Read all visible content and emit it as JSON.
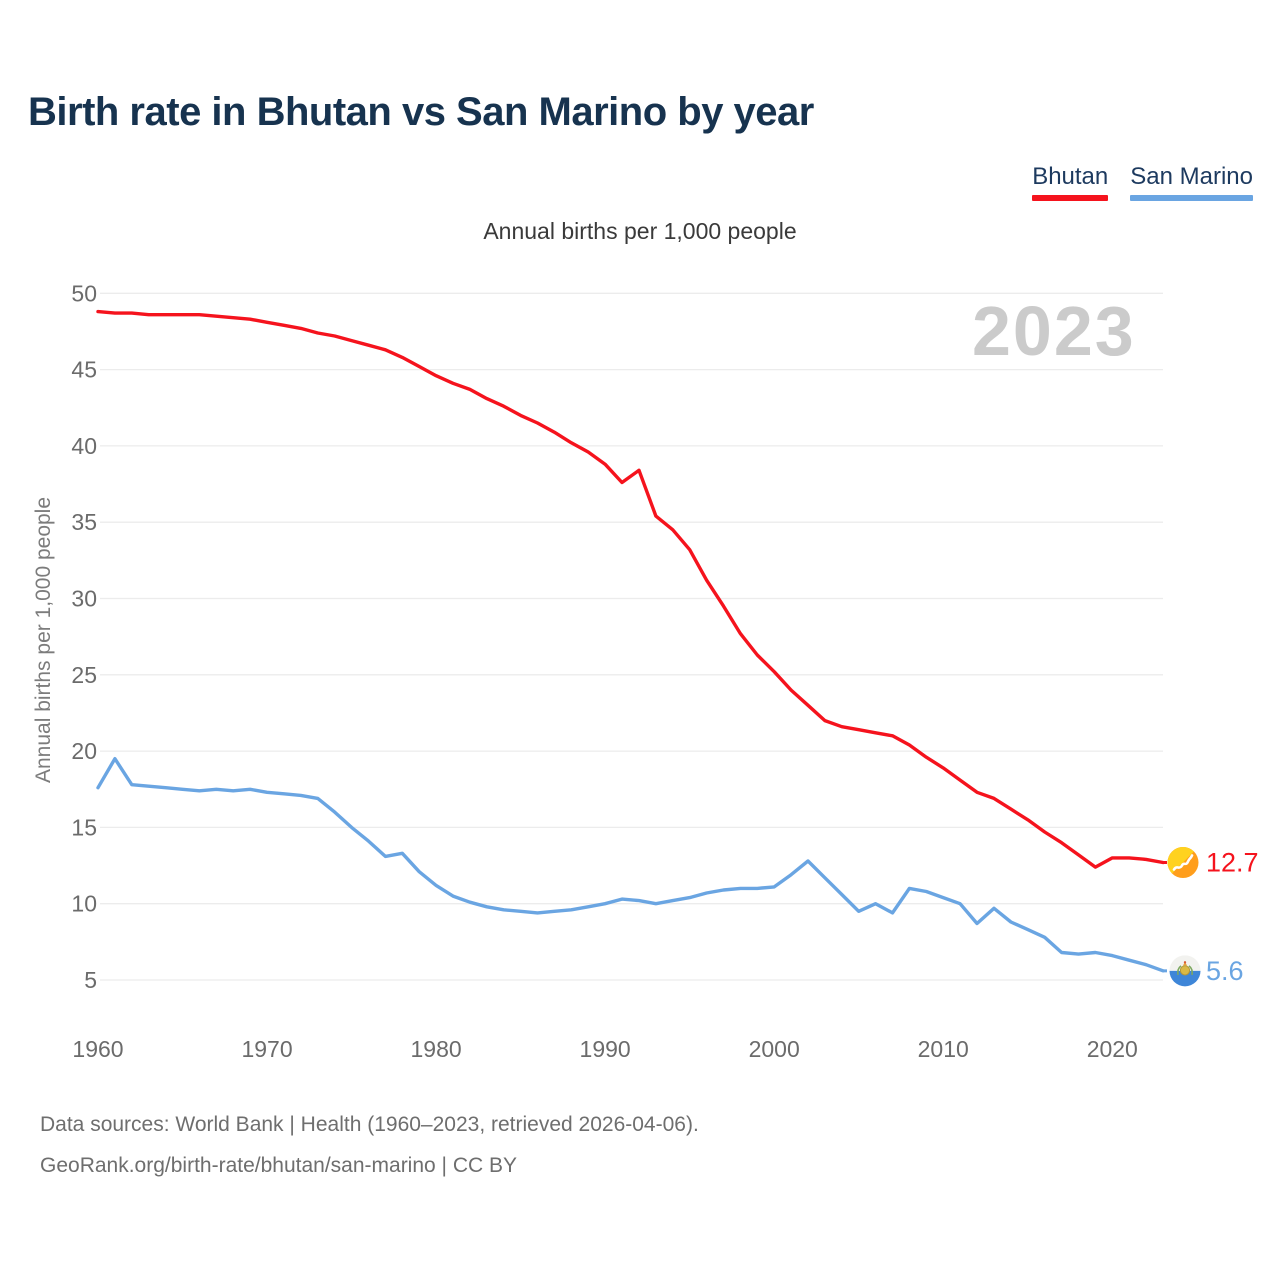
{
  "header": {
    "title": "Birth rate in Bhutan vs San Marino by year"
  },
  "legend": [
    {
      "label": "Bhutan",
      "color": "#f5131d"
    },
    {
      "label": "San Marino",
      "color": "#6aa5e2"
    }
  ],
  "watermark": "2023",
  "footer": {
    "line1": "Data sources: World Bank | Health (1960–2023, retrieved 2026-04-06).",
    "line2": "GeoRank.org/birth-rate/bhutan/san-marino | CC BY"
  },
  "chart_data": {
    "type": "line",
    "title": "Annual births per 1,000 people",
    "xlabel": "",
    "ylabel": "Annual births per 1,000 people",
    "ylim": [
      5,
      50
    ],
    "yticks": [
      5,
      10,
      15,
      20,
      25,
      30,
      35,
      40,
      45,
      50
    ],
    "xticks": [
      1960,
      1970,
      1980,
      1990,
      2000,
      2010,
      2020
    ],
    "grid": "horizontal",
    "legend_position": "top-right",
    "x_range": [
      1960,
      2023
    ],
    "x": [
      1960,
      1961,
      1962,
      1963,
      1964,
      1965,
      1966,
      1967,
      1968,
      1969,
      1970,
      1971,
      1972,
      1973,
      1974,
      1975,
      1976,
      1977,
      1978,
      1979,
      1980,
      1981,
      1982,
      1983,
      1984,
      1985,
      1986,
      1987,
      1988,
      1989,
      1990,
      1991,
      1992,
      1993,
      1994,
      1995,
      1996,
      1997,
      1998,
      1999,
      2000,
      2001,
      2002,
      2003,
      2004,
      2005,
      2006,
      2007,
      2008,
      2009,
      2010,
      2011,
      2012,
      2013,
      2014,
      2015,
      2016,
      2017,
      2018,
      2019,
      2020,
      2021,
      2022,
      2023
    ],
    "series": [
      {
        "name": "Bhutan",
        "color": "#f5131d",
        "end_label": "12.7",
        "flag": "bhutan",
        "values": [
          48.8,
          48.7,
          48.7,
          48.6,
          48.6,
          48.6,
          48.6,
          48.5,
          48.4,
          48.3,
          48.1,
          47.9,
          47.7,
          47.4,
          47.2,
          46.9,
          46.6,
          46.3,
          45.8,
          45.2,
          44.6,
          44.1,
          43.7,
          43.1,
          42.6,
          42.0,
          41.5,
          40.9,
          40.2,
          39.6,
          38.8,
          37.6,
          38.4,
          35.4,
          34.5,
          33.2,
          31.2,
          29.5,
          27.7,
          26.3,
          25.2,
          24.0,
          23.0,
          22.0,
          21.6,
          21.4,
          21.2,
          21.0,
          20.4,
          19.6,
          18.9,
          18.1,
          17.3,
          16.9,
          16.2,
          15.5,
          14.7,
          14.0,
          13.2,
          12.4,
          13.0,
          13.0,
          12.9,
          12.7
        ]
      },
      {
        "name": "San Marino",
        "color": "#6aa5e2",
        "end_label": "5.6",
        "flag": "san-marino",
        "values": [
          17.6,
          19.5,
          17.8,
          17.7,
          17.6,
          17.5,
          17.4,
          17.5,
          17.4,
          17.5,
          17.3,
          17.2,
          17.1,
          16.9,
          16.0,
          15.0,
          14.1,
          13.1,
          13.3,
          12.1,
          11.2,
          10.5,
          10.1,
          9.8,
          9.6,
          9.5,
          9.4,
          9.5,
          9.6,
          9.8,
          10.0,
          10.3,
          10.2,
          10.0,
          10.2,
          10.4,
          10.7,
          10.9,
          11.0,
          11.0,
          11.1,
          11.9,
          12.8,
          11.7,
          10.6,
          9.5,
          10.0,
          9.4,
          11.0,
          10.8,
          10.4,
          10.0,
          8.7,
          9.7,
          8.8,
          8.3,
          7.8,
          6.8,
          6.7,
          6.8,
          6.6,
          6.3,
          6.0,
          5.6
        ]
      }
    ]
  }
}
